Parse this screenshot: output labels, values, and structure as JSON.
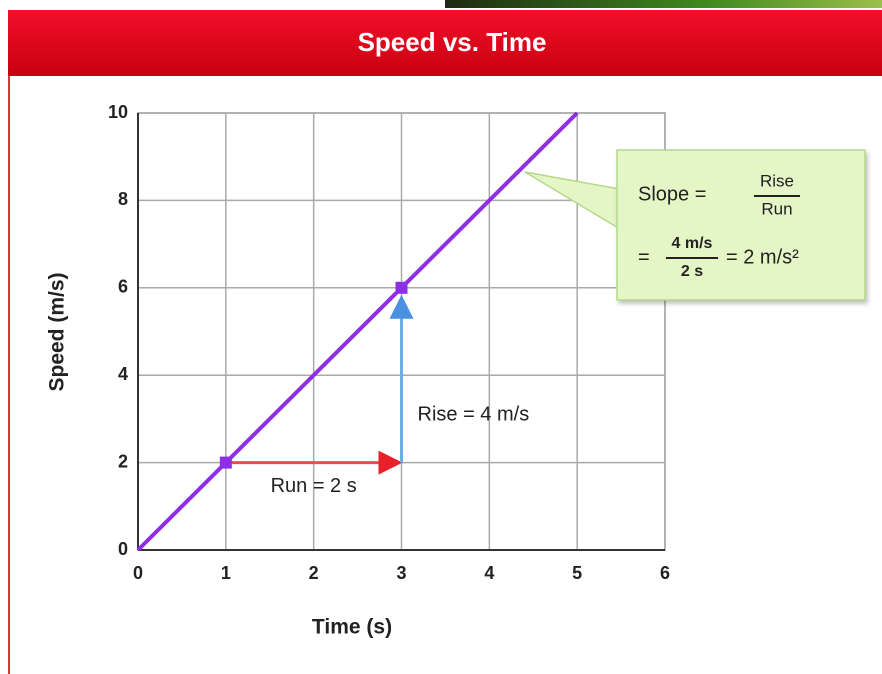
{
  "chart_data": {
    "type": "line",
    "title": "Speed vs. Time",
    "x_label": "Time (s)",
    "y_label": "Speed (m/s)",
    "x": [
      0,
      5
    ],
    "values": [
      0,
      10
    ],
    "color": "#8e2ee8",
    "points": {
      "x": [
        1,
        3
      ],
      "values": [
        2,
        6
      ],
      "color": "#8e2ee8"
    },
    "xlim": [
      0,
      6
    ],
    "xticks": [
      0,
      1,
      2,
      3,
      4,
      5,
      6
    ],
    "ylim": [
      0,
      10
    ],
    "yticks": [
      0,
      2,
      4,
      6,
      8,
      10
    ],
    "grid": true,
    "annotations": {
      "run": "Run = 2 s",
      "run_color": "#f0494f",
      "rise": "Rise = 4 m/s",
      "rise_color": "#6aaee8"
    },
    "callout": {
      "slope": "Slope =",
      "rise": "Rise",
      "run": "Run",
      "equals": "=",
      "numerator": "4 m/s",
      "denominator": "2 s",
      "result": "= 2 m/s²"
    }
  }
}
